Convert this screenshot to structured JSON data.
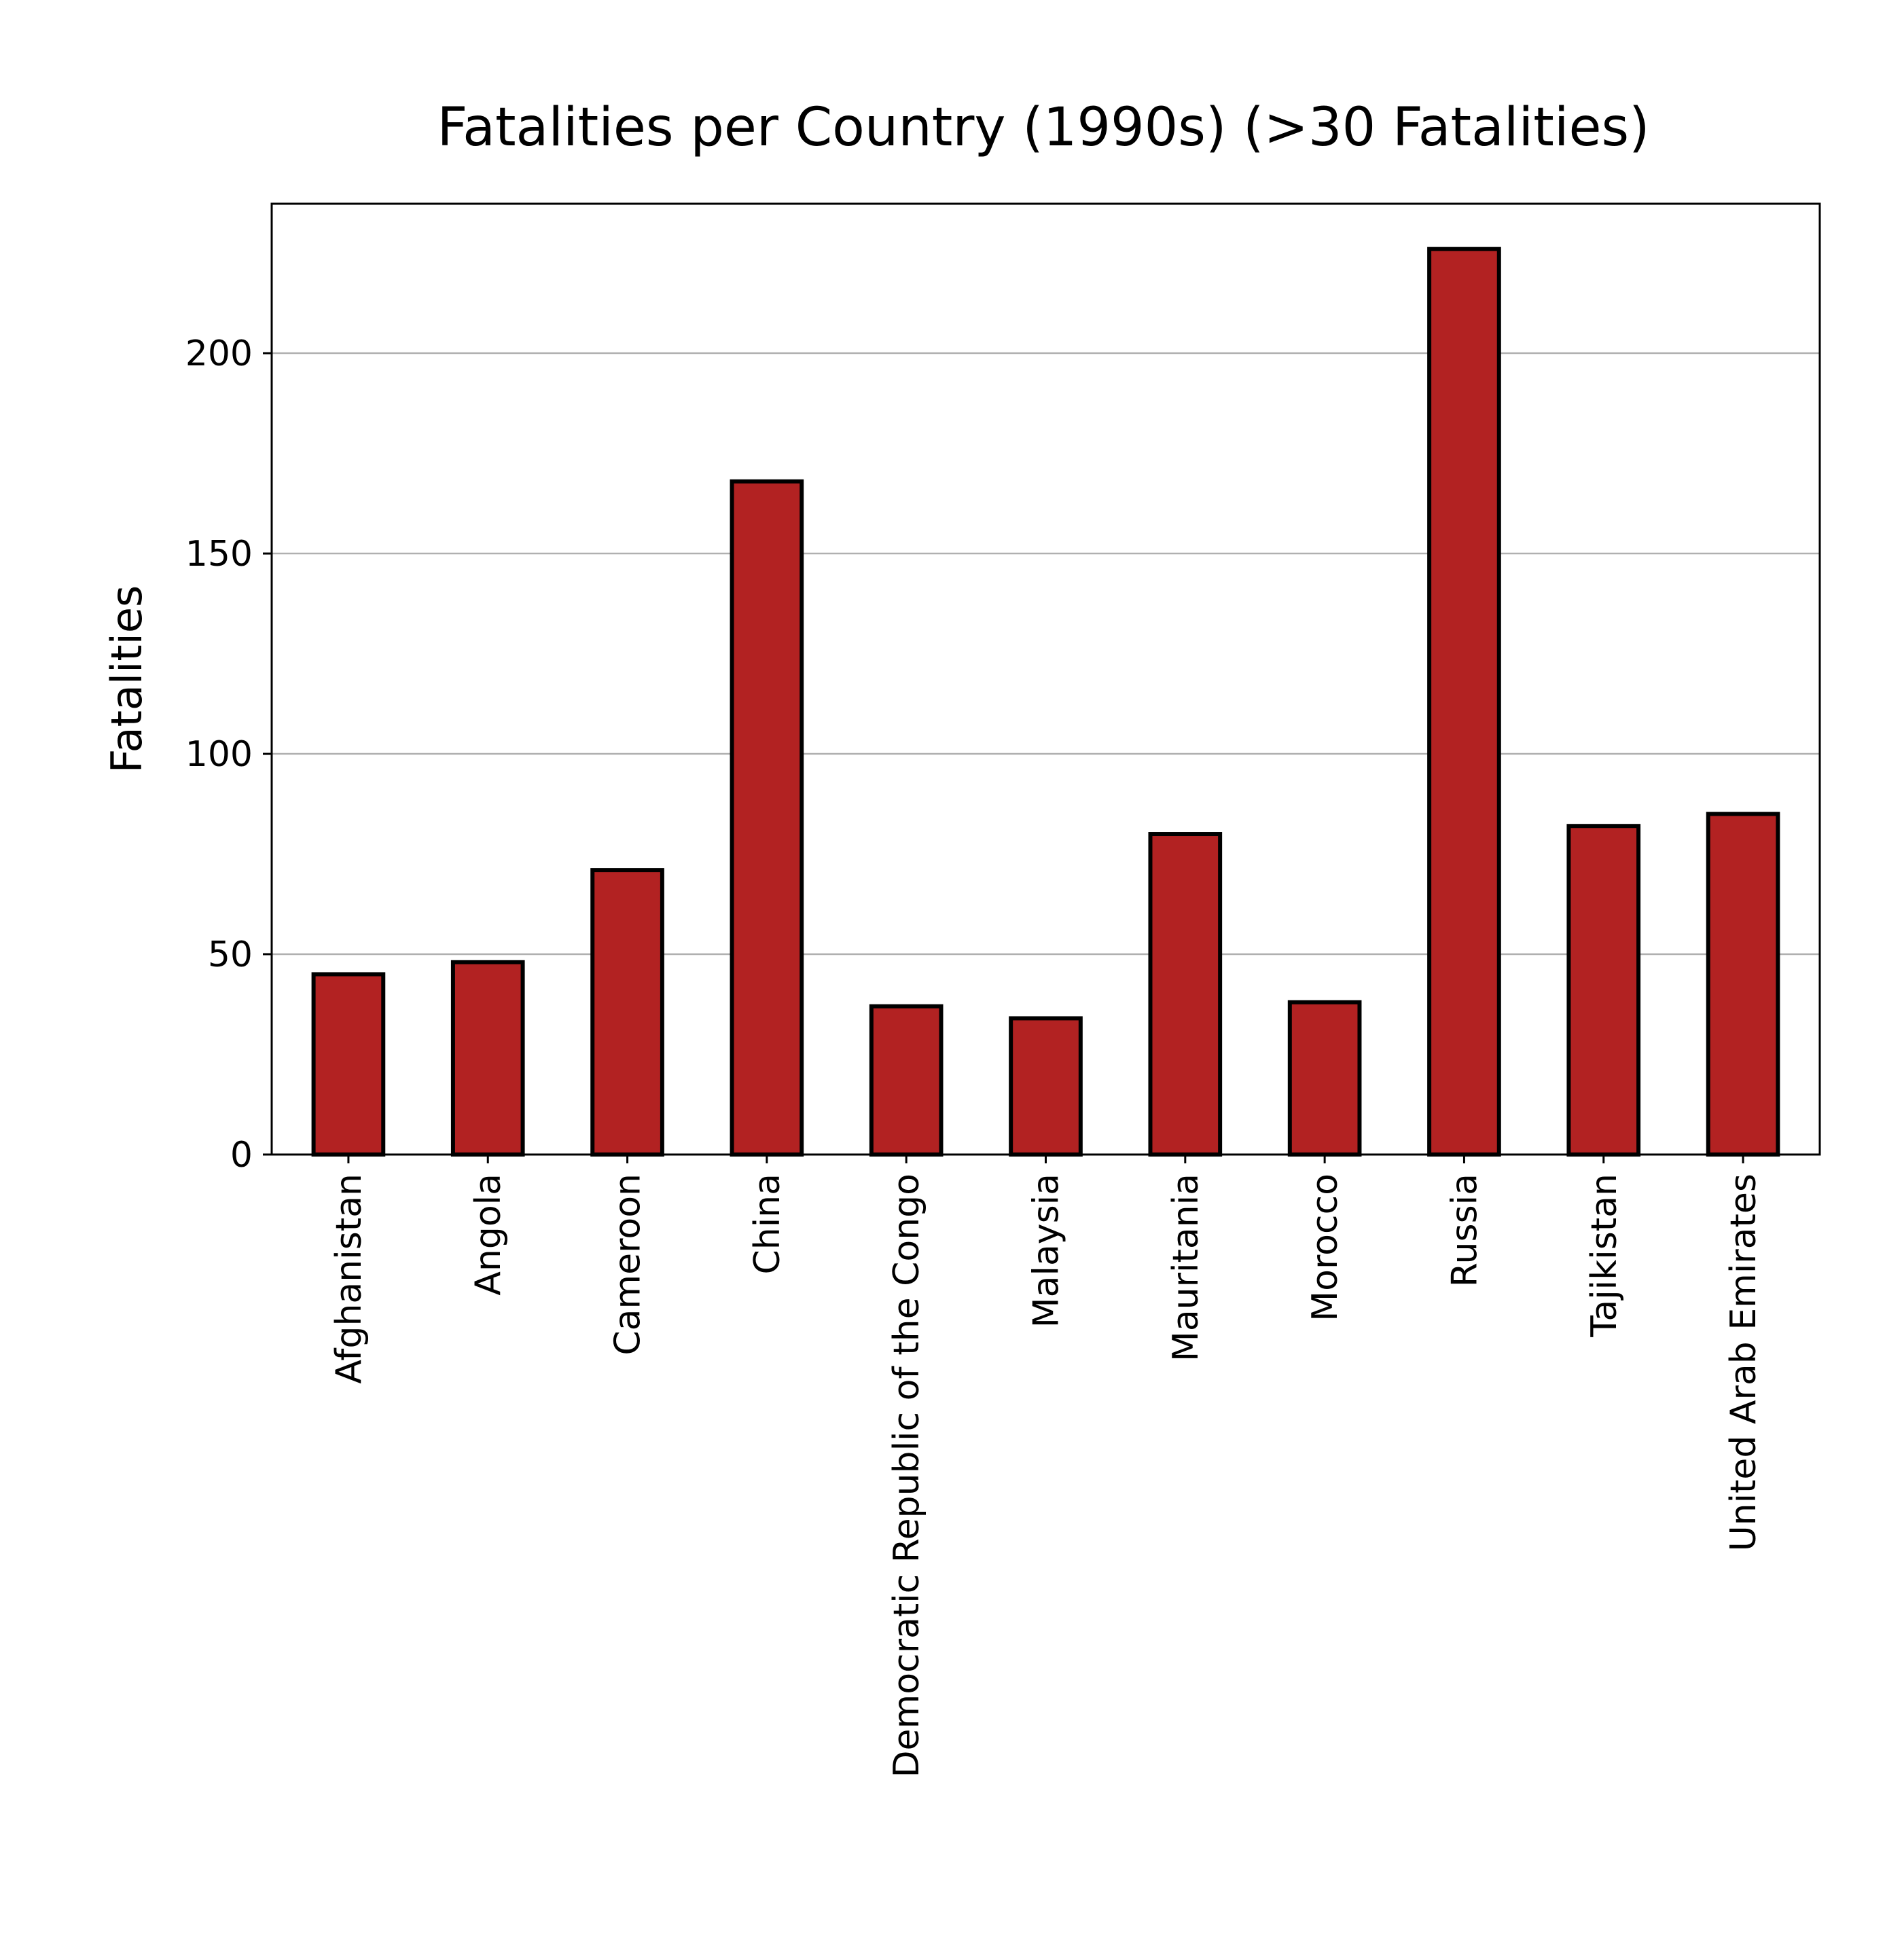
{
  "chart_data": {
    "type": "bar",
    "title": "Fatalities per Country (1990s) (>30 Fatalities)",
    "xlabel": "",
    "ylabel": "Fatalities",
    "ylim": [
      0,
      237.3
    ],
    "yticks": [
      0,
      50,
      100,
      150,
      200
    ],
    "grid": "y",
    "bar_color": "#b22222",
    "categories": [
      "Afghanistan",
      "Angola",
      "Cameroon",
      "China",
      "Democratic Republic of the Congo",
      "Malaysia",
      "Mauritania",
      "Morocco",
      "Russia",
      "Tajikistan",
      "United Arab Emirates"
    ],
    "values": [
      45,
      48,
      71,
      168,
      37,
      34,
      80,
      38,
      226,
      82,
      85
    ]
  }
}
